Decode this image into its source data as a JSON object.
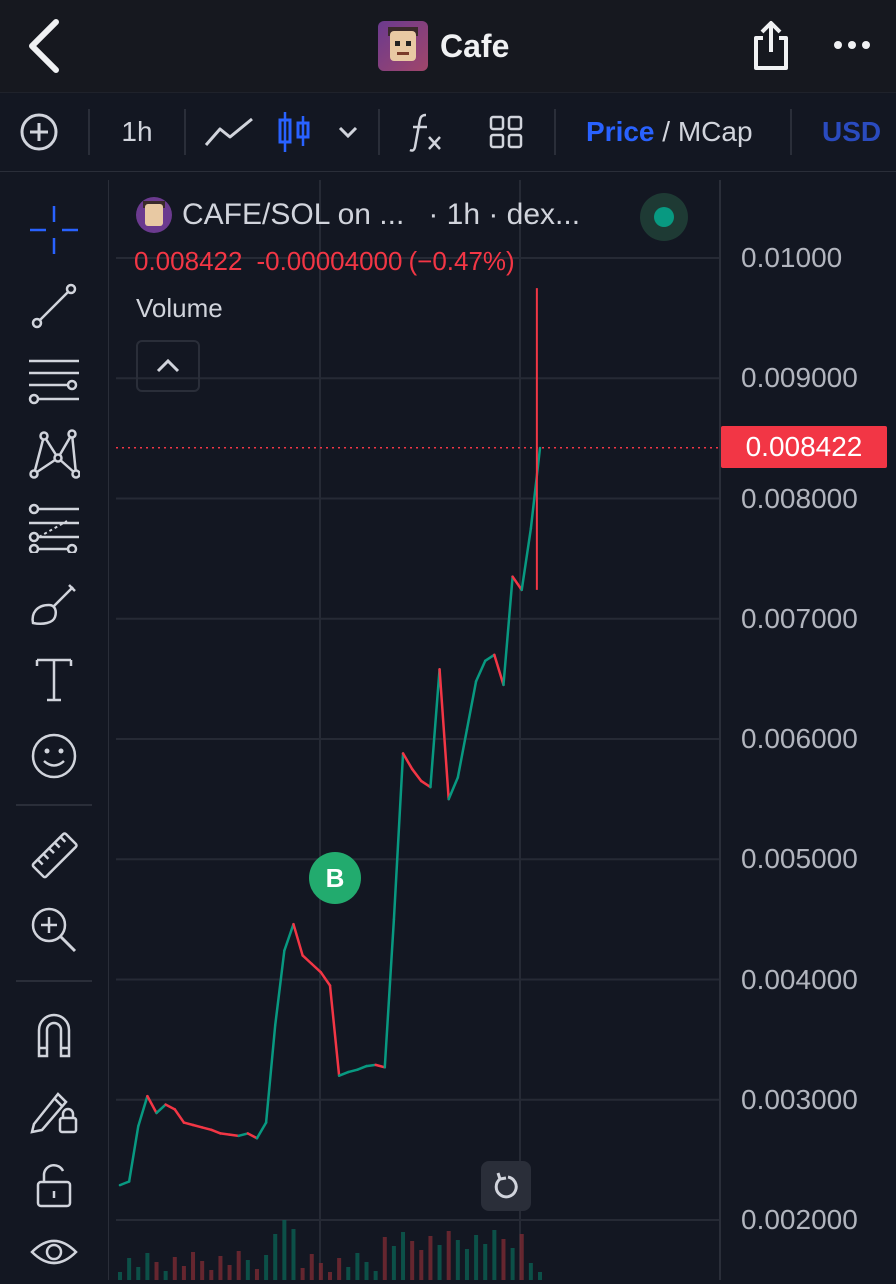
{
  "header": {
    "back_icon": "chevron-left-icon",
    "title": "Cafe",
    "share_icon": "share-icon",
    "more_icon": "more-horizontal-icon"
  },
  "toolbar": {
    "add_icon": "plus-circle-icon",
    "interval": "1h",
    "line_icon": "line-chart-icon",
    "candle_icon": "candlestick-icon",
    "chevron_icon": "chevron-down-icon",
    "indicators_icon": "fx-icon",
    "layout_icon": "grid-layout-icon",
    "price_label": "Price",
    "separator": " / ",
    "mcap_label": "MCap",
    "currency": "USD"
  },
  "sidebar": {
    "tools": [
      "crosshair-icon",
      "trend-line-icon",
      "horizontal-lines-icon",
      "pattern-icon",
      "fib-icon",
      "brush-icon",
      "text-icon",
      "emoji-icon",
      "ruler-icon",
      "zoom-in-icon",
      "magnet-icon",
      "lock-drawing-icon",
      "unlock-icon",
      "eye-icon"
    ]
  },
  "legend": {
    "pair": "CAFE/SOL on ...",
    "source": "· 1h · dex...",
    "last": "0.008422",
    "change": "-0.00004000",
    "change_pct": "(−0.47%)",
    "volume_label": "Volume"
  },
  "price_axis": {
    "labels": [
      "0.01000",
      "0.009000",
      "0.008000",
      "0.007000",
      "0.006000",
      "0.005000",
      "0.004000",
      "0.003000",
      "0.002000"
    ],
    "current": "0.008422"
  },
  "markers": {
    "buy": "B"
  },
  "colors": {
    "up": "#089981",
    "down": "#f23645",
    "accent": "#2962ff",
    "bg": "#131722"
  },
  "chart_data": {
    "type": "line",
    "title": "CAFE/SOL on ... · 1h · dex...",
    "ylim": [
      0.0018,
      0.0113
    ],
    "last_price": 0.008422,
    "high_wick": 0.00975,
    "series": [
      {
        "values": [
          0.00229,
          0.00232,
          0.00278,
          0.00303,
          0.00289,
          0.00296,
          0.00292,
          0.00281,
          0.00279,
          0.00277,
          0.00275,
          0.00272,
          0.00271,
          0.0027,
          0.00272,
          0.00268,
          0.00281,
          0.00362,
          0.00424,
          0.00446,
          0.0042,
          0.00413,
          0.00406,
          0.00395,
          0.0032,
          0.00323,
          0.00325,
          0.00328,
          0.00329,
          0.00327,
          0.0045,
          0.00588,
          0.00575,
          0.00565,
          0.0056,
          0.00658,
          0.0055,
          0.00568,
          0.00608,
          0.00648,
          0.00665,
          0.0067,
          0.00645,
          0.00735,
          0.00724,
          0.00775,
          0.00842
        ]
      }
    ]
  }
}
